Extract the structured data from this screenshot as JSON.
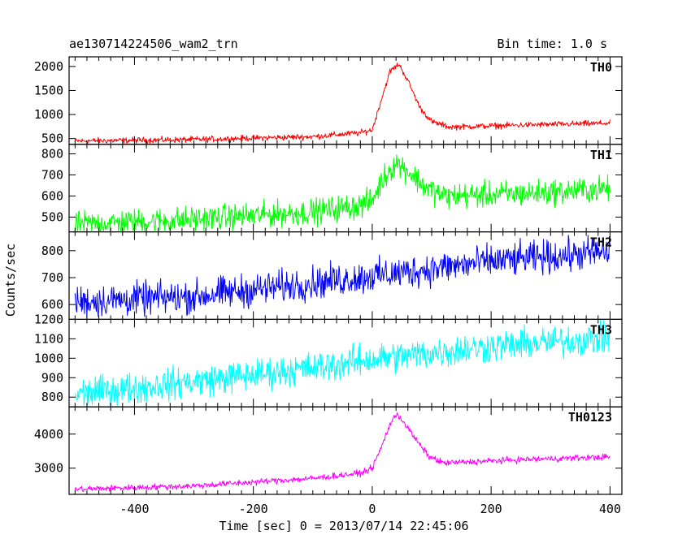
{
  "header": {
    "title": "ae130714224506_wam2_trn",
    "bin_time": "Bin time: 1.0 s"
  },
  "chart_data": {
    "type": "line",
    "xlabel": "Time [sec] 0 = 2013/07/14 22:45:06",
    "ylabel": "Counts/sec",
    "xlim": [
      -510,
      420
    ],
    "x_ticks": [
      -400,
      -200,
      0,
      200,
      400
    ],
    "grid": false,
    "panels": [
      {
        "name": "TH0",
        "color": "#ff0000",
        "ylim": [
          380,
          2200
        ],
        "y_ticks": [
          500,
          1000,
          1500,
          2000
        ],
        "noise": 30,
        "points": [
          [
            -500,
            450
          ],
          [
            -300,
            480
          ],
          [
            -100,
            540
          ],
          [
            -20,
            620
          ],
          [
            0,
            680
          ],
          [
            15,
            1300
          ],
          [
            30,
            1900
          ],
          [
            45,
            2050
          ],
          [
            60,
            1700
          ],
          [
            80,
            1150
          ],
          [
            100,
            850
          ],
          [
            130,
            740
          ],
          [
            250,
            780
          ],
          [
            400,
            820
          ]
        ]
      },
      {
        "name": "TH1",
        "color": "#00ff00",
        "ylim": [
          430,
          845
        ],
        "y_ticks": [
          500,
          600,
          700,
          800
        ],
        "noise": 30,
        "points": [
          [
            -500,
            465
          ],
          [
            -300,
            490
          ],
          [
            -100,
            525
          ],
          [
            -20,
            555
          ],
          [
            0,
            580
          ],
          [
            20,
            690
          ],
          [
            40,
            760
          ],
          [
            60,
            720
          ],
          [
            90,
            640
          ],
          [
            120,
            600
          ],
          [
            250,
            610
          ],
          [
            400,
            635
          ]
        ]
      },
      {
        "name": "TH2",
        "color": "#0000ff",
        "ylim": [
          545,
          870
        ],
        "y_ticks": [
          600,
          700,
          800
        ],
        "noise": 30,
        "points": [
          [
            -500,
            610
          ],
          [
            -300,
            630
          ],
          [
            -100,
            680
          ],
          [
            0,
            705
          ],
          [
            200,
            760
          ],
          [
            400,
            795
          ]
        ]
      },
      {
        "name": "TH3",
        "color": "#00ffff",
        "ylim": [
          750,
          1200
        ],
        "y_ticks": [
          800,
          900,
          1000,
          1100,
          1200
        ],
        "noise": 40,
        "points": [
          [
            -500,
            815
          ],
          [
            -300,
            880
          ],
          [
            -100,
            950
          ],
          [
            0,
            995
          ],
          [
            200,
            1060
          ],
          [
            400,
            1105
          ]
        ]
      },
      {
        "name": "TH0123",
        "color": "#ff00ff",
        "ylim": [
          2230,
          4800
        ],
        "y_ticks": [
          3000,
          4000
        ],
        "noise": 45,
        "points": [
          [
            -500,
            2380
          ],
          [
            -300,
            2480
          ],
          [
            -100,
            2700
          ],
          [
            -20,
            2850
          ],
          [
            0,
            3000
          ],
          [
            15,
            3600
          ],
          [
            30,
            4300
          ],
          [
            42,
            4600
          ],
          [
            55,
            4300
          ],
          [
            75,
            3800
          ],
          [
            95,
            3350
          ],
          [
            120,
            3150
          ],
          [
            250,
            3250
          ],
          [
            400,
            3330
          ]
        ]
      }
    ]
  }
}
